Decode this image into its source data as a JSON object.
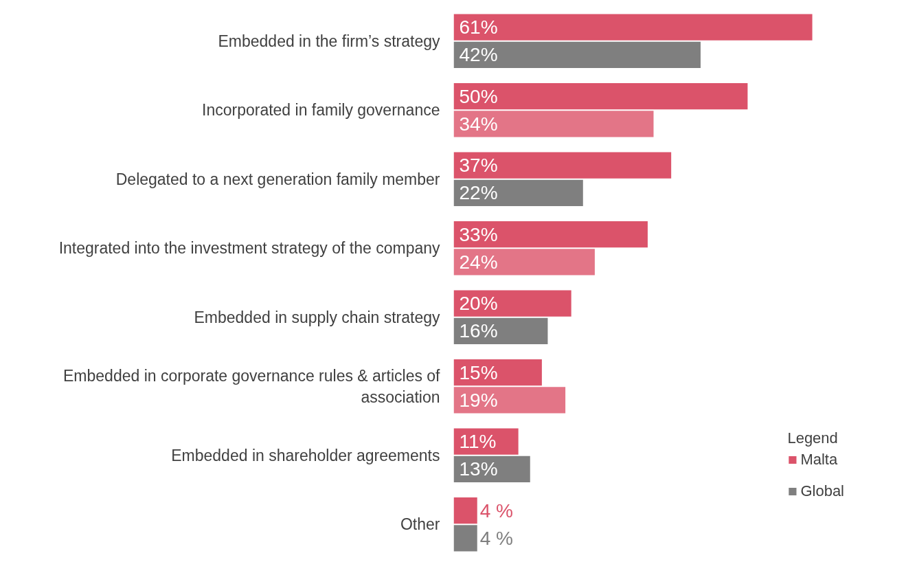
{
  "chart_data": {
    "type": "bar",
    "orientation": "horizontal",
    "legend_title": "Legend",
    "legend": "bottom right",
    "grid": false,
    "tick_labels": "y",
    "categories": [
      "Embedded in the firm’s strategy",
      "Incorporated in family governance",
      "Delegated to a next generation family member",
      "Integrated into the investment strategy of the company",
      "Embedded in supply chain strategy",
      "Embedded in corporate governance rules & articles of association",
      "Embedded in shareholder agreements",
      "Other"
    ],
    "series": [
      {
        "name": "Malta",
        "color": "#db536a",
        "values": [
          61,
          50,
          37,
          33,
          20,
          15,
          11,
          4
        ],
        "value_labels": [
          "61%",
          "50%",
          "37%",
          "33%",
          "20%",
          "15%",
          "11%",
          "4 %"
        ]
      },
      {
        "name": "Global",
        "color": "#7f7f7f",
        "colors": [
          "#7f7f7f",
          "#e37587",
          "#7f7f7f",
          "#e37587",
          "#7f7f7f",
          "#e37587",
          "#7f7f7f",
          "#7f7f7f"
        ],
        "values": [
          42,
          34,
          22,
          24,
          16,
          19,
          13,
          4
        ],
        "value_labels": [
          "42%",
          "34%",
          "22%",
          "24%",
          "16%",
          "19%",
          "13%",
          "4 %"
        ]
      }
    ]
  }
}
